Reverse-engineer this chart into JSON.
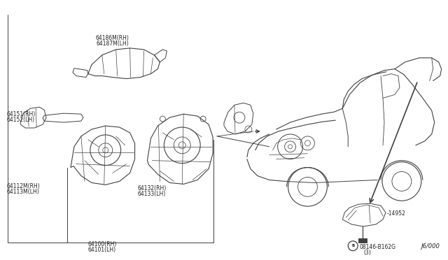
{
  "bg_color": "#ffffff",
  "line_color": "#404040",
  "text_color": "#202020",
  "fig_width": 6.4,
  "fig_height": 3.72,
  "dpi": 100,
  "diagram_code": "J6/000",
  "label_64186": [
    "64186M(RH)",
    "64187M(LH)"
  ],
  "label_64151": [
    "64151(RH)",
    "64152(LH)"
  ],
  "label_64112": [
    "64112M(RH)",
    "64113M(LH)"
  ],
  "label_64132": [
    "64132(RH)",
    "64133(LH)"
  ],
  "label_64100": [
    "64100(RH)",
    "64101(LH)"
  ],
  "label_14952": "14952",
  "label_bolt": "08146-B162G",
  "label_bolt2": "(3)",
  "font_size": 5.5
}
